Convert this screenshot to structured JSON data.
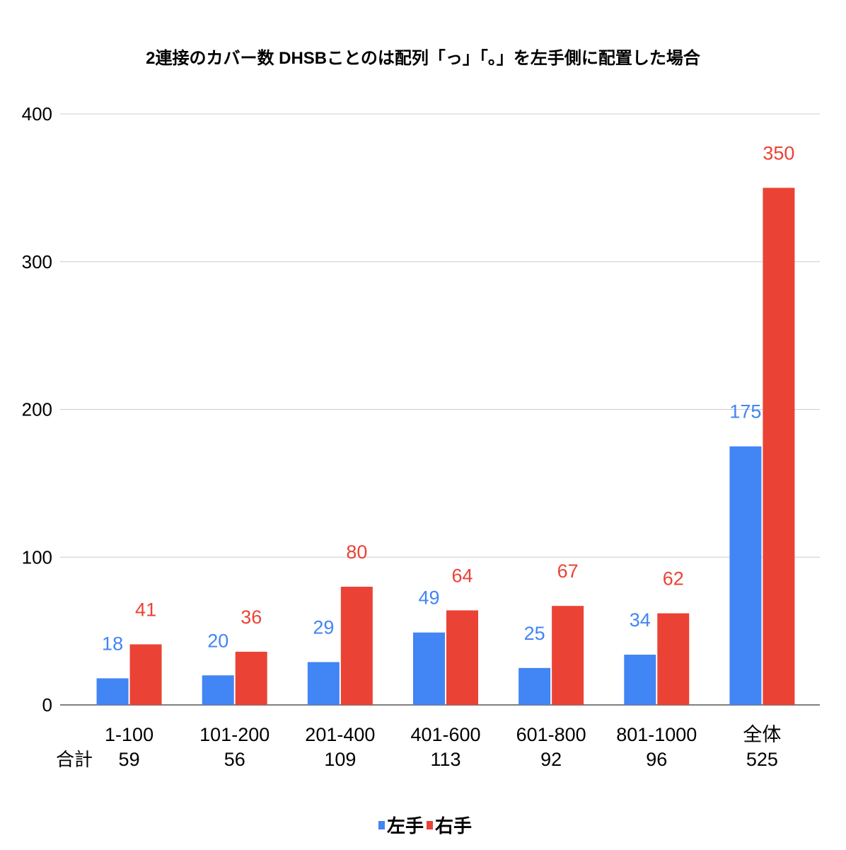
{
  "chart_data": {
    "type": "bar",
    "title": "2連接のカバー数 DHSBことのは配列「っ」「。」を左手側に配置した場合",
    "categories": [
      "1-100",
      "101-200",
      "201-400",
      "401-600",
      "601-800",
      "801-1000",
      "全体"
    ],
    "category_totals": [
      "59",
      "56",
      "109",
      "113",
      "92",
      "96",
      "525"
    ],
    "total_row_label": "合計",
    "series": [
      {
        "name": "左手",
        "color": "#4285f4",
        "values": [
          18,
          20,
          29,
          49,
          25,
          34,
          175
        ]
      },
      {
        "name": "右手",
        "color": "#ea4335",
        "values": [
          41,
          36,
          80,
          64,
          67,
          62,
          350
        ]
      }
    ],
    "ylim": [
      0,
      400
    ],
    "yticks": [
      0,
      100,
      200,
      300,
      400
    ],
    "xlabel": "",
    "ylabel": "",
    "grid": true,
    "legend_position": "bottom",
    "data_labels": true
  }
}
